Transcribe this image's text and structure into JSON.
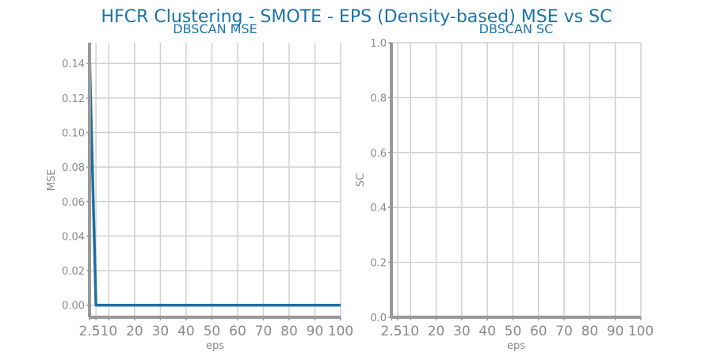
{
  "suptitle": "HFCR Clustering - SMOTE - EPS (Density-based) MSE vs SC",
  "colors": {
    "title": "#1a73a8",
    "line": "#1f6f9f",
    "grid": "#d0d0d0",
    "axis": "#999999",
    "tick_text": "#8a8a8a"
  },
  "chart_data": [
    {
      "type": "line",
      "title": "DBSCAN MSE",
      "xlabel": "eps",
      "ylabel": "MSE",
      "x": [
        2.5,
        5,
        10,
        20,
        30,
        40,
        50,
        60,
        70,
        80,
        90,
        100
      ],
      "series": [
        {
          "values": [
            0.145,
            0.0,
            0.0,
            0.0,
            0.0,
            0.0,
            0.0,
            0.0,
            0.0,
            0.0,
            0.0,
            0.0
          ]
        }
      ],
      "xlim": [
        2.5,
        100
      ],
      "ylim": [
        -0.007,
        0.152
      ],
      "xticks": [
        2.5,
        5,
        10,
        20,
        30,
        40,
        50,
        60,
        70,
        80,
        90,
        100
      ],
      "xtick_labels": [
        "2.5",
        "5",
        "10",
        "20",
        "30",
        "40",
        "50",
        "60",
        "70",
        "80",
        "90",
        "100"
      ],
      "yticks": [
        0.0,
        0.02,
        0.04,
        0.06,
        0.08,
        0.1,
        0.12,
        0.14
      ],
      "ytick_labels": [
        "0.00",
        "0.02",
        "0.04",
        "0.06",
        "0.08",
        "0.10",
        "0.12",
        "0.14"
      ],
      "grid": true
    },
    {
      "type": "line",
      "title": "DBSCAN SC",
      "xlabel": "eps",
      "ylabel": "SC",
      "x": [
        2.5,
        5,
        10,
        20,
        30,
        40,
        50,
        60,
        70,
        80,
        90,
        100
      ],
      "series": [
        {
          "values": [
            0,
            0,
            0,
            0,
            0,
            0,
            0,
            0,
            0,
            0,
            0,
            0
          ]
        }
      ],
      "xlim": [
        2.5,
        100
      ],
      "ylim": [
        0,
        1.0
      ],
      "xticks": [
        2.5,
        5,
        10,
        20,
        30,
        40,
        50,
        60,
        70,
        80,
        90,
        100
      ],
      "xtick_labels": [
        "2.5",
        "5",
        "10",
        "20",
        "30",
        "40",
        "50",
        "60",
        "70",
        "80",
        "90",
        "100"
      ],
      "yticks": [
        0.0,
        0.2,
        0.4,
        0.6,
        0.8,
        1.0
      ],
      "ytick_labels": [
        "0.0",
        "0.2",
        "0.4",
        "0.6",
        "0.8",
        "1.0"
      ],
      "grid": true
    }
  ]
}
